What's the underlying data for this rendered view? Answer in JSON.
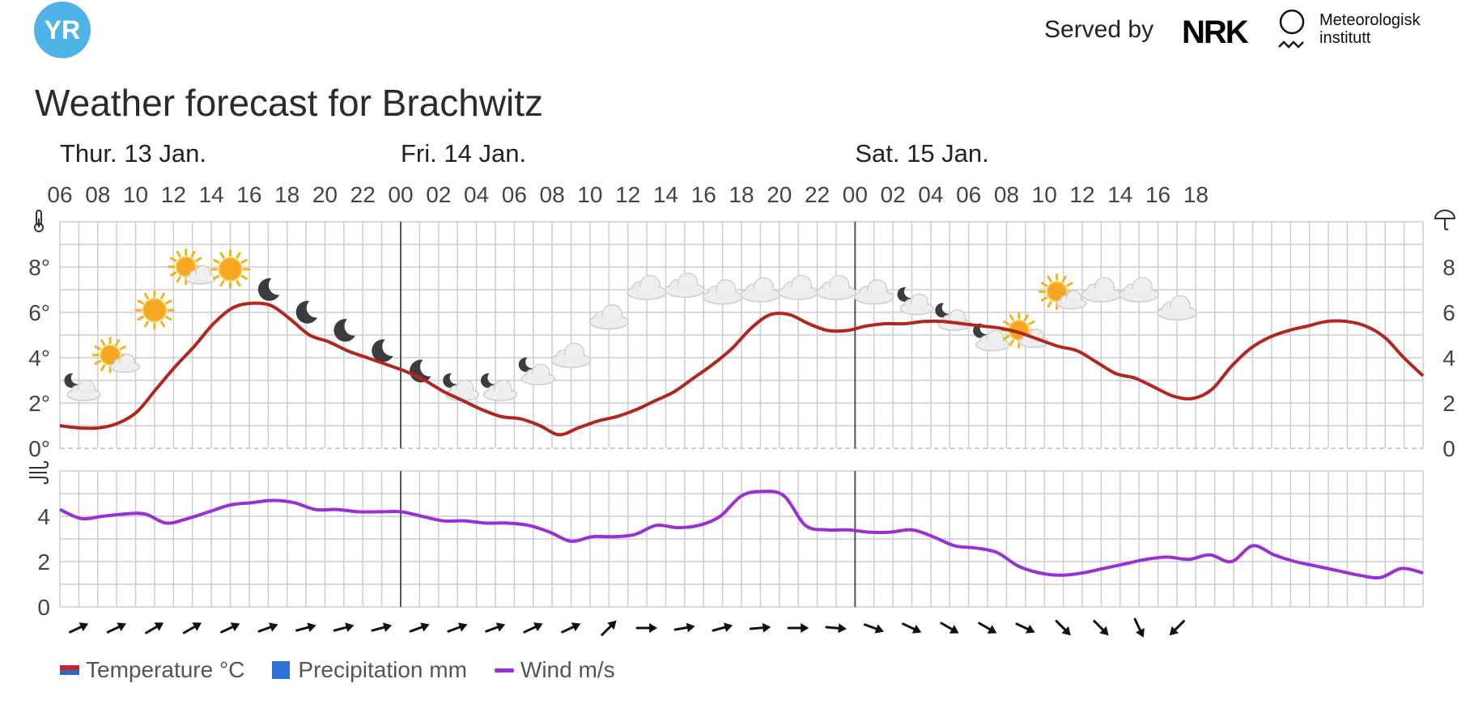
{
  "header": {
    "logo_text": "YR",
    "served_by": "Served by",
    "nrk_logo": "NRK",
    "met_name_line1": "Meteorologisk",
    "met_name_line2": "institutt"
  },
  "title": "Weather forecast for Brachwitz",
  "legend": {
    "temperature": "Temperature °C",
    "precipitation": "Precipitation mm",
    "wind": "Wind m/s"
  },
  "colors": {
    "temperature": "#b3261e",
    "wind": "#9b2fd6",
    "precipitation": "#2f6fdc",
    "grid": "#c8ced6",
    "day_divider": "#555555",
    "logo": "#4fb3e8"
  },
  "chart_data": {
    "type": "line",
    "day_labels": [
      {
        "label": "Thur. 13 Jan.",
        "start_hour": 0
      },
      {
        "label": "Fri. 14 Jan.",
        "start_hour": 18
      },
      {
        "label": "Sat. 15 Jan.",
        "start_hour": 42
      }
    ],
    "x_tick_labels": [
      "06",
      "08",
      "10",
      "12",
      "14",
      "16",
      "18",
      "20",
      "22",
      "00",
      "02",
      "04",
      "06",
      "08",
      "10",
      "12",
      "14",
      "16",
      "18",
      "20",
      "22",
      "00",
      "02",
      "04",
      "06",
      "08",
      "10",
      "12",
      "14",
      "16",
      "18"
    ],
    "temperature": {
      "name": "Temperature °C",
      "ylim": [
        0,
        10
      ],
      "y_ticks": [
        "0°",
        "2°",
        "4°",
        "6°",
        "8°"
      ],
      "right_ticks": [
        "0",
        "2",
        "4",
        "6",
        "8"
      ],
      "values": [
        1.0,
        0.9,
        0.9,
        1.1,
        1.6,
        2.6,
        3.6,
        4.5,
        5.5,
        6.2,
        6.4,
        6.3,
        5.7,
        5.0,
        4.7,
        4.3,
        4.0,
        3.7,
        3.4,
        3.0,
        2.5,
        2.1,
        1.7,
        1.4,
        1.3,
        1.0,
        0.6,
        0.9,
        1.2,
        1.4,
        1.7,
        2.1,
        2.5,
        3.1,
        3.7,
        4.4,
        5.3,
        5.9,
        5.9,
        5.5,
        5.2,
        5.2,
        5.4,
        5.5,
        5.5,
        5.6,
        5.6,
        5.5,
        5.4,
        5.3,
        5.1,
        4.8,
        4.5,
        4.3,
        3.8,
        3.3,
        3.1,
        2.7,
        2.3,
        2.2,
        2.6,
        3.6,
        4.4,
        4.9,
        5.2,
        5.4,
        5.6,
        5.6,
        5.4,
        4.9,
        4.0,
        3.2
      ]
    },
    "wind": {
      "name": "Wind m/s",
      "ylim": [
        0,
        6
      ],
      "y_ticks": [
        "0",
        "2",
        "4"
      ],
      "values": [
        4.3,
        3.9,
        4.0,
        4.1,
        4.1,
        3.7,
        3.9,
        4.2,
        4.5,
        4.6,
        4.7,
        4.6,
        4.3,
        4.3,
        4.2,
        4.2,
        4.2,
        4.0,
        3.8,
        3.8,
        3.7,
        3.7,
        3.6,
        3.3,
        2.9,
        3.1,
        3.1,
        3.2,
        3.6,
        3.5,
        3.6,
        4.0,
        4.9,
        5.1,
        4.9,
        3.6,
        3.4,
        3.4,
        3.3,
        3.3,
        3.4,
        3.1,
        2.7,
        2.6,
        2.4,
        1.8,
        1.5,
        1.4,
        1.5,
        1.7,
        1.9,
        2.1,
        2.2,
        2.1,
        2.3,
        2.0,
        2.7,
        2.3,
        2.0,
        1.8,
        1.6,
        1.4,
        1.3,
        1.7,
        1.5
      ]
    },
    "weather_symbols": [
      {
        "hour": 1,
        "value": 2.7,
        "icon": "partly-cloudy-night-icon"
      },
      {
        "hour": 3,
        "value": 3.9,
        "icon": "partly-cloudy-day-icon"
      },
      {
        "hour": 5,
        "value": 6.1,
        "icon": "clear-sun-icon"
      },
      {
        "hour": 7,
        "value": 7.8,
        "icon": "partly-cloudy-day-icon"
      },
      {
        "hour": 9,
        "value": 7.9,
        "icon": "clear-sun-icon"
      },
      {
        "hour": 11,
        "value": 7.0,
        "icon": "moon-icon"
      },
      {
        "hour": 13,
        "value": 6.0,
        "icon": "moon-icon"
      },
      {
        "hour": 15,
        "value": 5.2,
        "icon": "moon-icon"
      },
      {
        "hour": 17,
        "value": 4.3,
        "icon": "moon-icon"
      },
      {
        "hour": 19,
        "value": 3.4,
        "icon": "moon-icon"
      },
      {
        "hour": 21,
        "value": 2.7,
        "icon": "partly-cloudy-night-icon"
      },
      {
        "hour": 23,
        "value": 2.7,
        "icon": "partly-cloudy-night-icon"
      },
      {
        "hour": 25,
        "value": 3.4,
        "icon": "partly-cloudy-night-icon"
      },
      {
        "hour": 27,
        "value": 4.1,
        "icon": "cloud-icon"
      },
      {
        "hour": 29,
        "value": 5.8,
        "icon": "cloud-icon"
      },
      {
        "hour": 31,
        "value": 7.1,
        "icon": "cloud-icon"
      },
      {
        "hour": 33,
        "value": 7.2,
        "icon": "cloud-icon"
      },
      {
        "hour": 35,
        "value": 6.9,
        "icon": "cloud-icon"
      },
      {
        "hour": 37,
        "value": 7.0,
        "icon": "cloud-icon"
      },
      {
        "hour": 39,
        "value": 7.1,
        "icon": "cloud-icon"
      },
      {
        "hour": 41,
        "value": 7.1,
        "icon": "cloud-icon"
      },
      {
        "hour": 43,
        "value": 6.9,
        "icon": "cloud-icon"
      },
      {
        "hour": 45,
        "value": 6.5,
        "icon": "partly-cloudy-night-icon"
      },
      {
        "hour": 47,
        "value": 5.8,
        "icon": "partly-cloudy-night-icon"
      },
      {
        "hour": 49,
        "value": 4.9,
        "icon": "partly-cloudy-night-icon"
      },
      {
        "hour": 51,
        "value": 5.0,
        "icon": "partly-cloudy-day-icon"
      },
      {
        "hour": 53,
        "value": 6.7,
        "icon": "partly-cloudy-day-icon"
      },
      {
        "hour": 55,
        "value": 7.0,
        "icon": "cloud-icon"
      },
      {
        "hour": 57,
        "value": 7.0,
        "icon": "cloud-icon"
      },
      {
        "hour": 59,
        "value": 6.2,
        "icon": "cloud-icon"
      }
    ],
    "wind_directions_deg": [
      65,
      65,
      60,
      60,
      65,
      70,
      75,
      75,
      75,
      70,
      70,
      70,
      65,
      65,
      45,
      90,
      80,
      75,
      85,
      90,
      95,
      110,
      115,
      120,
      120,
      115,
      135,
      135,
      155,
      225
    ],
    "grid": true,
    "legend_position": "bottom-left"
  }
}
